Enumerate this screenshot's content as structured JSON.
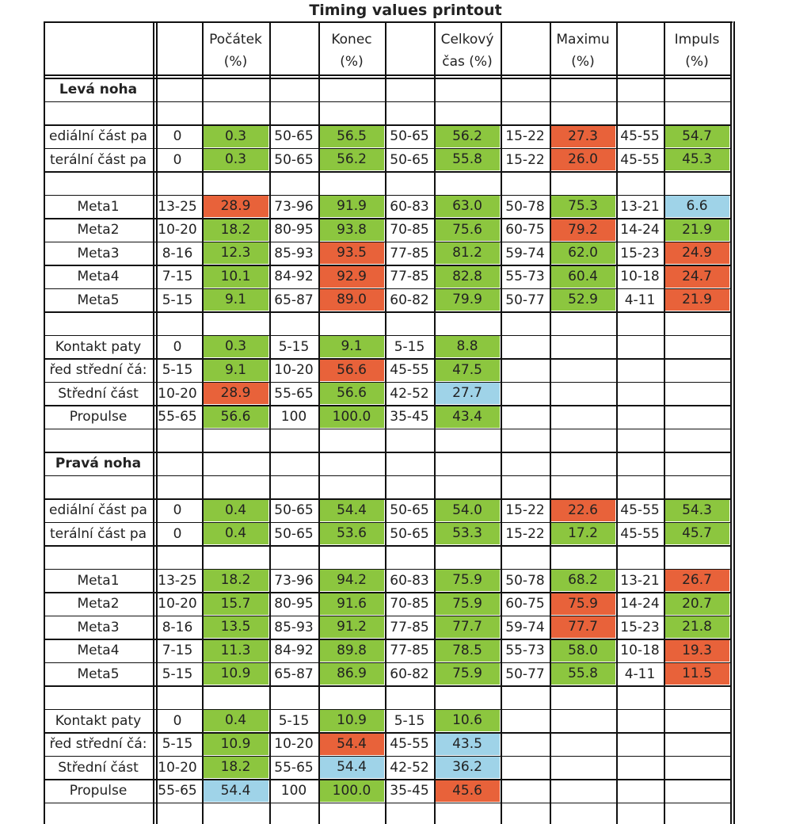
{
  "title": "Timing values printout",
  "colors": {
    "green": "#8cc63f",
    "red": "#e8623a",
    "blue": "#9fd3e8"
  },
  "headers": [
    [
      "Počátek",
      "(%)"
    ],
    [
      "Konec",
      "(%)"
    ],
    [
      "Celkový",
      "čas (%)"
    ],
    [
      "Maximu",
      "(%)"
    ],
    [
      "Impuls",
      "(%)"
    ]
  ],
  "sections": [
    {
      "title": "Levá noha",
      "groups": [
        [
          {
            "label": "ediální část pa",
            "cells": [
              [
                "0",
                "0.3",
                "g"
              ],
              [
                "50-65",
                "56.5",
                "g"
              ],
              [
                "50-65",
                "56.2",
                "g"
              ],
              [
                "15-22",
                "27.3",
                "r"
              ],
              [
                "45-55",
                "54.7",
                "g"
              ]
            ]
          },
          {
            "label": "terální část pa",
            "cells": [
              [
                "0",
                "0.3",
                "g"
              ],
              [
                "50-65",
                "56.2",
                "g"
              ],
              [
                "50-65",
                "55.8",
                "g"
              ],
              [
                "15-22",
                "26.0",
                "r"
              ],
              [
                "45-55",
                "45.3",
                "g"
              ]
            ]
          }
        ],
        [
          {
            "label": "Meta1",
            "cells": [
              [
                "13-25",
                "28.9",
                "r"
              ],
              [
                "73-96",
                "91.9",
                "g"
              ],
              [
                "60-83",
                "63.0",
                "g"
              ],
              [
                "50-78",
                "75.3",
                "g"
              ],
              [
                "13-21",
                "6.6",
                "b"
              ]
            ]
          },
          {
            "label": "Meta2",
            "cells": [
              [
                "10-20",
                "18.2",
                "g"
              ],
              [
                "80-95",
                "93.8",
                "g"
              ],
              [
                "70-85",
                "75.6",
                "g"
              ],
              [
                "60-75",
                "79.2",
                "r"
              ],
              [
                "14-24",
                "21.9",
                "g"
              ]
            ]
          },
          {
            "label": "Meta3",
            "cells": [
              [
                "8-16",
                "12.3",
                "g"
              ],
              [
                "85-93",
                "93.5",
                "r"
              ],
              [
                "77-85",
                "81.2",
                "g"
              ],
              [
                "59-74",
                "62.0",
                "g"
              ],
              [
                "15-23",
                "24.9",
                "r"
              ]
            ]
          },
          {
            "label": "Meta4",
            "cells": [
              [
                "7-15",
                "10.1",
                "g"
              ],
              [
                "84-92",
                "92.9",
                "r"
              ],
              [
                "77-85",
                "82.8",
                "g"
              ],
              [
                "55-73",
                "60.4",
                "g"
              ],
              [
                "10-18",
                "24.7",
                "r"
              ]
            ]
          },
          {
            "label": "Meta5",
            "cells": [
              [
                "5-15",
                "9.1",
                "g"
              ],
              [
                "65-87",
                "89.0",
                "r"
              ],
              [
                "60-82",
                "79.9",
                "g"
              ],
              [
                "50-77",
                "52.9",
                "g"
              ],
              [
                "4-11",
                "21.9",
                "r"
              ]
            ]
          }
        ],
        [
          {
            "label": "Kontakt paty",
            "cells": [
              [
                "0",
                "0.3",
                "g"
              ],
              [
                "5-15",
                "9.1",
                "g"
              ],
              [
                "5-15",
                "8.8",
                "g"
              ]
            ]
          },
          {
            "label": "řed střední čá:",
            "cells": [
              [
                "5-15",
                "9.1",
                "g"
              ],
              [
                "10-20",
                "56.6",
                "r"
              ],
              [
                "45-55",
                "47.5",
                "g"
              ]
            ]
          },
          {
            "label": "Střední část",
            "cells": [
              [
                "10-20",
                "28.9",
                "r"
              ],
              [
                "55-65",
                "56.6",
                "g"
              ],
              [
                "42-52",
                "27.7",
                "b"
              ]
            ]
          },
          {
            "label": "Propulse",
            "cells": [
              [
                "55-65",
                "56.6",
                "g"
              ],
              [
                "100",
                "100.0",
                "g"
              ],
              [
                "35-45",
                "43.4",
                "g"
              ]
            ]
          }
        ]
      ]
    },
    {
      "title": "Pravá noha",
      "groups": [
        [
          {
            "label": "ediální část pa",
            "cells": [
              [
                "0",
                "0.4",
                "g"
              ],
              [
                "50-65",
                "54.4",
                "g"
              ],
              [
                "50-65",
                "54.0",
                "g"
              ],
              [
                "15-22",
                "22.6",
                "r"
              ],
              [
                "45-55",
                "54.3",
                "g"
              ]
            ]
          },
          {
            "label": "terální část pa",
            "cells": [
              [
                "0",
                "0.4",
                "g"
              ],
              [
                "50-65",
                "53.6",
                "g"
              ],
              [
                "50-65",
                "53.3",
                "g"
              ],
              [
                "15-22",
                "17.2",
                "g"
              ],
              [
                "45-55",
                "45.7",
                "g"
              ]
            ]
          }
        ],
        [
          {
            "label": "Meta1",
            "cells": [
              [
                "13-25",
                "18.2",
                "g"
              ],
              [
                "73-96",
                "94.2",
                "g"
              ],
              [
                "60-83",
                "75.9",
                "g"
              ],
              [
                "50-78",
                "68.2",
                "g"
              ],
              [
                "13-21",
                "26.7",
                "r"
              ]
            ]
          },
          {
            "label": "Meta2",
            "cells": [
              [
                "10-20",
                "15.7",
                "g"
              ],
              [
                "80-95",
                "91.6",
                "g"
              ],
              [
                "70-85",
                "75.9",
                "g"
              ],
              [
                "60-75",
                "75.9",
                "r"
              ],
              [
                "14-24",
                "20.7",
                "g"
              ]
            ]
          },
          {
            "label": "Meta3",
            "cells": [
              [
                "8-16",
                "13.5",
                "g"
              ],
              [
                "85-93",
                "91.2",
                "g"
              ],
              [
                "77-85",
                "77.7",
                "g"
              ],
              [
                "59-74",
                "77.7",
                "r"
              ],
              [
                "15-23",
                "21.8",
                "g"
              ]
            ]
          },
          {
            "label": "Meta4",
            "cells": [
              [
                "7-15",
                "11.3",
                "g"
              ],
              [
                "84-92",
                "89.8",
                "g"
              ],
              [
                "77-85",
                "78.5",
                "g"
              ],
              [
                "55-73",
                "58.0",
                "g"
              ],
              [
                "10-18",
                "19.3",
                "r"
              ]
            ]
          },
          {
            "label": "Meta5",
            "cells": [
              [
                "5-15",
                "10.9",
                "g"
              ],
              [
                "65-87",
                "86.9",
                "g"
              ],
              [
                "60-82",
                "75.9",
                "g"
              ],
              [
                "50-77",
                "55.8",
                "g"
              ],
              [
                "4-11",
                "11.5",
                "r"
              ]
            ]
          }
        ],
        [
          {
            "label": "Kontakt paty",
            "cells": [
              [
                "0",
                "0.4",
                "g"
              ],
              [
                "5-15",
                "10.9",
                "g"
              ],
              [
                "5-15",
                "10.6",
                "g"
              ]
            ]
          },
          {
            "label": "řed střední čá:",
            "cells": [
              [
                "5-15",
                "10.9",
                "g"
              ],
              [
                "10-20",
                "54.4",
                "r"
              ],
              [
                "45-55",
                "43.5",
                "b"
              ]
            ]
          },
          {
            "label": "Střední část",
            "cells": [
              [
                "10-20",
                "18.2",
                "g"
              ],
              [
                "55-65",
                "54.4",
                "b"
              ],
              [
                "42-52",
                "36.2",
                "b"
              ]
            ]
          },
          {
            "label": "Propulse",
            "cells": [
              [
                "55-65",
                "54.4",
                "b"
              ],
              [
                "100",
                "100.0",
                "g"
              ],
              [
                "35-45",
                "45.6",
                "r"
              ]
            ]
          }
        ]
      ]
    }
  ]
}
